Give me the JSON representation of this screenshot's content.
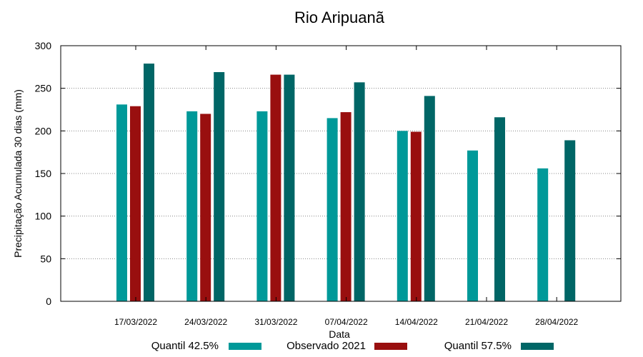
{
  "chart_data": {
    "type": "bar",
    "title": "Rio Aripuanã",
    "xlabel": "Data",
    "ylabel": "Precipitação Acumulada 30 dias (mm)",
    "ylim": [
      0,
      300
    ],
    "yticks": [
      0,
      50,
      100,
      150,
      200,
      250,
      300
    ],
    "grid": true,
    "legend_position": "bottom",
    "categories": [
      "17/03/2022",
      "24/03/2022",
      "31/03/2022",
      "07/04/2022",
      "14/04/2022",
      "21/04/2022",
      "28/04/2022"
    ],
    "series": [
      {
        "name": "Quantil 42.5%",
        "color": "#009999",
        "values": [
          231,
          223,
          223,
          215,
          200,
          177,
          156
        ]
      },
      {
        "name": "Observado 2021",
        "color": "#990f0f",
        "values": [
          229,
          220,
          266,
          222,
          199,
          null,
          null
        ]
      },
      {
        "name": "Quantil 57.5%",
        "color": "#006666",
        "values": [
          279,
          269,
          266,
          257,
          241,
          216,
          189
        ]
      }
    ]
  }
}
